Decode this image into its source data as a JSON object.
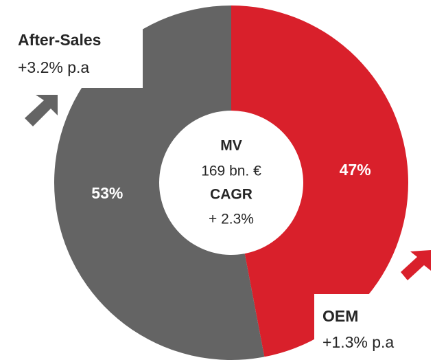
{
  "chart_data": {
    "type": "donut",
    "categories": [
      "OEM",
      "After-Sales"
    ],
    "values": [
      47,
      53
    ],
    "value_labels": [
      "47%",
      "53%"
    ],
    "colors": [
      "#d9202b",
      "#646464"
    ],
    "growth_labels": [
      "+1.3% p.a",
      "+3.2% p.a"
    ],
    "center_labels": [
      "MV",
      "169 bn. €",
      "CAGR",
      "+ 2.3%"
    ]
  }
}
